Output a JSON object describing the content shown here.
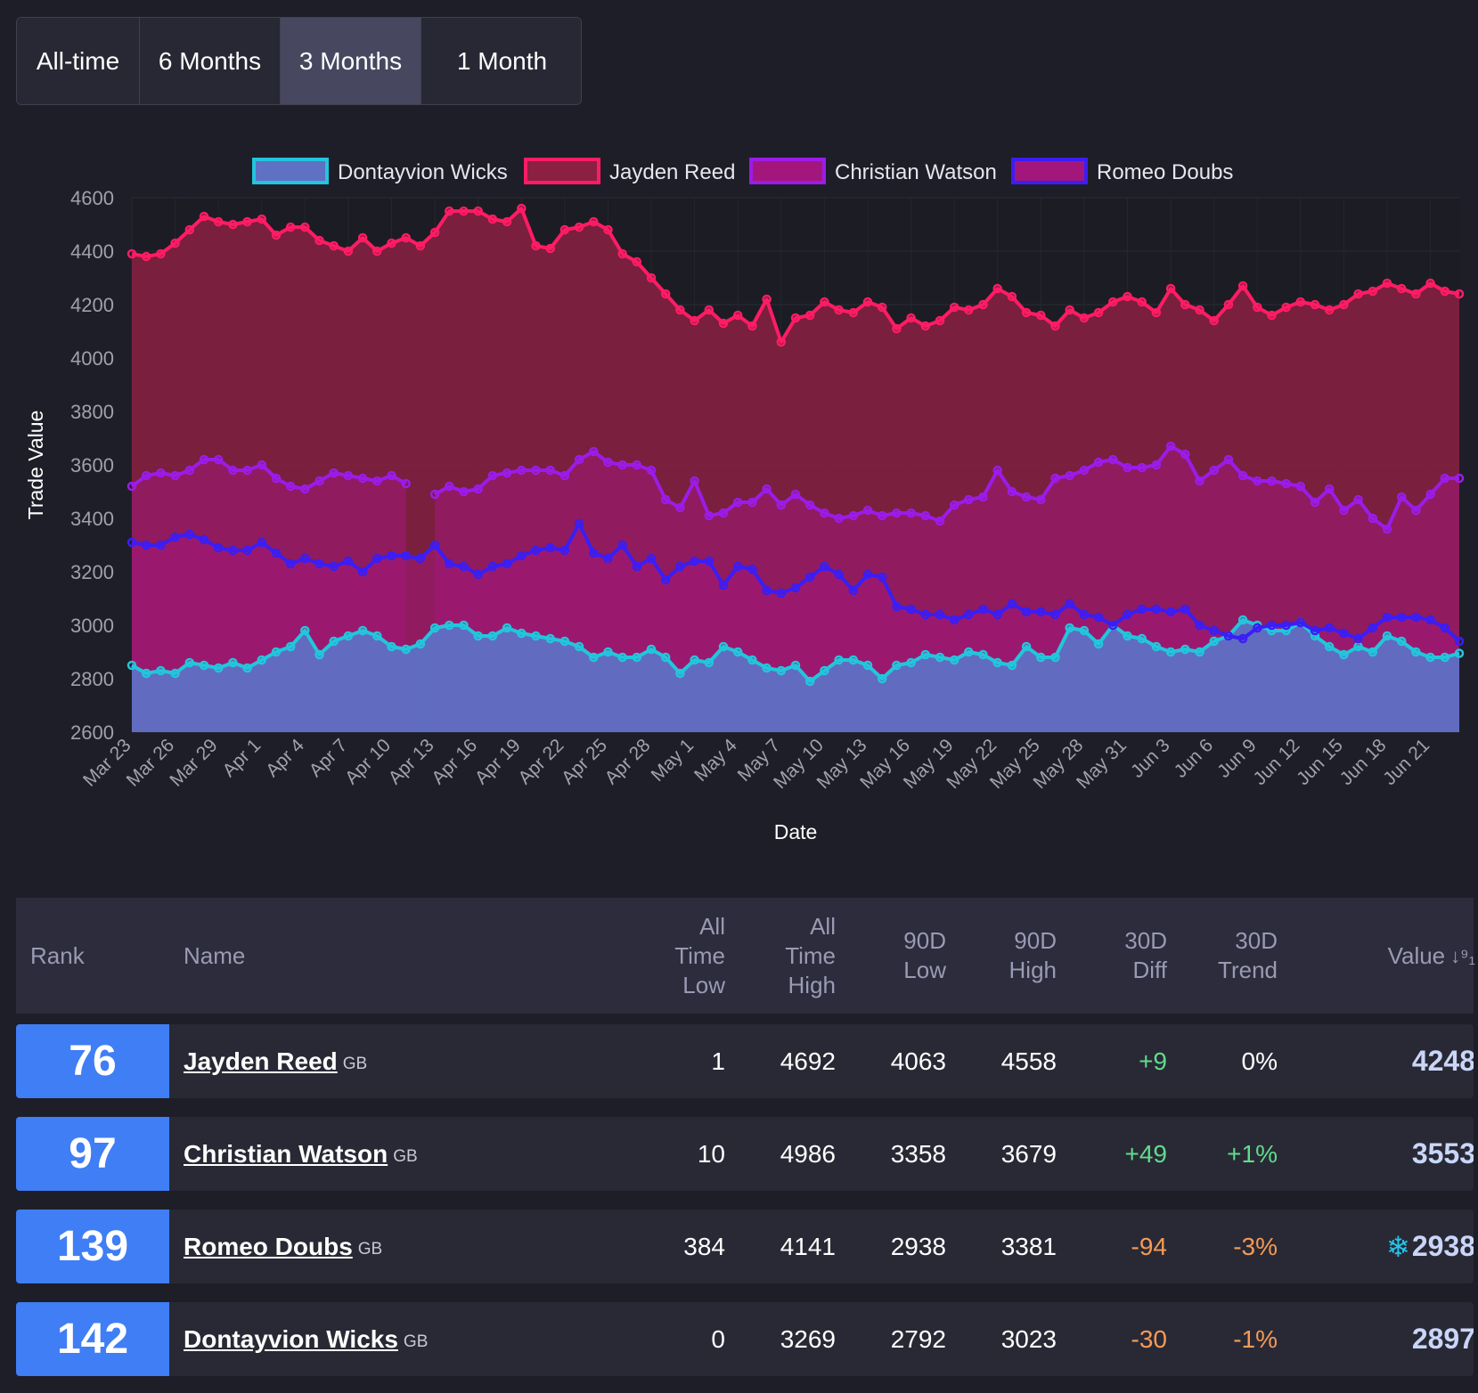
{
  "range_buttons": [
    {
      "label": "All-time",
      "active": false
    },
    {
      "label": "6 Months",
      "active": false
    },
    {
      "label": "3 Months",
      "active": true
    },
    {
      "label": "1 Month",
      "active": false
    }
  ],
  "chart_data": {
    "type": "area",
    "xlabel": "Date",
    "ylabel": "Trade Value",
    "ylim": [
      2600,
      4600
    ],
    "yticks": [
      2600,
      2800,
      3000,
      3200,
      3400,
      3600,
      3800,
      4000,
      4200,
      4400,
      4600
    ],
    "x_start": "Mar 23",
    "x_end": "Jun 21",
    "xticks": [
      "Mar 23",
      "Mar 26",
      "Mar 29",
      "Apr 1",
      "Apr 4",
      "Apr 7",
      "Apr 10",
      "Apr 13",
      "Apr 16",
      "Apr 19",
      "Apr 22",
      "Apr 25",
      "Apr 28",
      "May 1",
      "May 4",
      "May 7",
      "May 10",
      "May 13",
      "May 16",
      "May 19",
      "May 22",
      "May 25",
      "May 28",
      "May 31",
      "Jun 3",
      "Jun 6",
      "Jun 9",
      "Jun 12",
      "Jun 15",
      "Jun 18",
      "Jun 21"
    ],
    "legend_position": "top",
    "grid": true,
    "series": [
      {
        "name": "Dontayvion Wicks",
        "color": "#22c6dc",
        "fill": "#5e71c4",
        "values": [
          2850,
          2820,
          2830,
          2820,
          2860,
          2850,
          2840,
          2860,
          2840,
          2870,
          2900,
          2920,
          2980,
          2890,
          2940,
          2960,
          2980,
          2960,
          2920,
          2910,
          2930,
          2990,
          3000,
          3000,
          2960,
          2960,
          2990,
          2970,
          2960,
          2950,
          2940,
          2920,
          2880,
          2900,
          2880,
          2880,
          2910,
          2880,
          2820,
          2870,
          2860,
          2920,
          2900,
          2870,
          2840,
          2830,
          2850,
          2790,
          2830,
          2870,
          2870,
          2850,
          2800,
          2850,
          2860,
          2890,
          2880,
          2870,
          2900,
          2890,
          2860,
          2850,
          2920,
          2880,
          2880,
          2990,
          2980,
          2930,
          3000,
          2960,
          2950,
          2920,
          2900,
          2910,
          2900,
          2940,
          2960,
          3020,
          3000,
          2980,
          2980,
          3010,
          2960,
          2920,
          2890,
          2920,
          2900,
          2960,
          2940,
          2900,
          2880,
          2880,
          2895
        ]
      },
      {
        "name": "Jayden Reed",
        "color": "#ff1c64",
        "fill": "#8b2042",
        "values": [
          4390,
          4380,
          4390,
          4430,
          4480,
          4530,
          4510,
          4500,
          4510,
          4520,
          4460,
          4490,
          4490,
          4440,
          4420,
          4400,
          4450,
          4400,
          4430,
          4450,
          4420,
          4470,
          4550,
          4550,
          4550,
          4520,
          4510,
          4560,
          4420,
          4410,
          4480,
          4490,
          4510,
          4480,
          4390,
          4360,
          4300,
          4240,
          4180,
          4140,
          4180,
          4130,
          4160,
          4120,
          4220,
          4060,
          4150,
          4160,
          4210,
          4180,
          4170,
          4210,
          4190,
          4110,
          4150,
          4120,
          4140,
          4190,
          4180,
          4200,
          4260,
          4230,
          4170,
          4160,
          4120,
          4180,
          4150,
          4170,
          4210,
          4230,
          4210,
          4170,
          4260,
          4200,
          4180,
          4140,
          4200,
          4270,
          4190,
          4160,
          4190,
          4210,
          4200,
          4180,
          4200,
          4240,
          4250,
          4280,
          4260,
          4240,
          4280,
          4250,
          4240
        ]
      },
      {
        "name": "Christian Watson",
        "color": "#9b1ce8",
        "fill": "#a3177c",
        "values": [
          3520,
          3560,
          3570,
          3560,
          3580,
          3620,
          3620,
          3580,
          3580,
          3600,
          3550,
          3520,
          3510,
          3540,
          3570,
          3560,
          3550,
          3540,
          3560,
          3530,
          null,
          3490,
          3520,
          3500,
          3510,
          3560,
          3570,
          3580,
          3580,
          3580,
          3560,
          3620,
          3650,
          3610,
          3600,
          3600,
          3580,
          3470,
          3440,
          3540,
          3410,
          3420,
          3460,
          3460,
          3510,
          3450,
          3490,
          3450,
          3420,
          3400,
          3410,
          3430,
          3410,
          3420,
          3420,
          3410,
          3390,
          3450,
          3470,
          3480,
          3580,
          3500,
          3480,
          3470,
          3550,
          3560,
          3580,
          3610,
          3620,
          3590,
          3590,
          3600,
          3670,
          3640,
          3540,
          3580,
          3620,
          3560,
          3540,
          3540,
          3530,
          3520,
          3460,
          3510,
          3430,
          3470,
          3400,
          3360,
          3480,
          3430,
          3490,
          3550,
          3550
        ]
      },
      {
        "name": "Romeo Doubs",
        "color": "#3a1ef5",
        "fill": "#a3177c",
        "values": [
          3310,
          3300,
          3300,
          3330,
          3340,
          3320,
          3290,
          3280,
          3280,
          3310,
          3270,
          3230,
          3250,
          3230,
          3220,
          3240,
          3200,
          3250,
          3260,
          3260,
          3250,
          3300,
          3230,
          3220,
          3190,
          3220,
          3230,
          3260,
          3280,
          3290,
          3280,
          3380,
          3270,
          3250,
          3300,
          3220,
          3250,
          3170,
          3220,
          3240,
          3240,
          3150,
          3220,
          3210,
          3130,
          3120,
          3140,
          3180,
          3220,
          3190,
          3130,
          3190,
          3180,
          3070,
          3060,
          3040,
          3040,
          3020,
          3040,
          3060,
          3040,
          3080,
          3050,
          3050,
          3040,
          3080,
          3040,
          3030,
          3000,
          3040,
          3060,
          3060,
          3050,
          3060,
          3000,
          2980,
          2960,
          2950,
          2990,
          3000,
          3000,
          3010,
          2980,
          2990,
          2970,
          2950,
          2990,
          3030,
          3030,
          3030,
          3020,
          2990,
          2940
        ]
      }
    ]
  },
  "table": {
    "headers": {
      "rank": "Rank",
      "name": "Name",
      "atl": [
        "All",
        "Time",
        "Low"
      ],
      "ath": [
        "All",
        "Time",
        "High"
      ],
      "low90": [
        "90D",
        "Low"
      ],
      "high90": [
        "90D",
        "High"
      ],
      "diff30": [
        "30D",
        "Diff"
      ],
      "trend30": [
        "30D",
        "Trend"
      ],
      "value": "Value",
      "sort_icon": "↓⁹₁"
    },
    "rows": [
      {
        "rank": "76",
        "name": "Jayden Reed",
        "team": "GB",
        "atl": "1",
        "ath": "4692",
        "low90": "4063",
        "high90": "4558",
        "diff30": "+9",
        "trend30": "0%",
        "value": "4248",
        "diff_dir": "pos",
        "trend_dir": "flat",
        "frozen": false
      },
      {
        "rank": "97",
        "name": "Christian Watson",
        "team": "GB",
        "atl": "10",
        "ath": "4986",
        "low90": "3358",
        "high90": "3679",
        "diff30": "+49",
        "trend30": "+1%",
        "value": "3553",
        "diff_dir": "pos",
        "trend_dir": "pos",
        "frozen": false
      },
      {
        "rank": "139",
        "name": "Romeo Doubs",
        "team": "GB",
        "atl": "384",
        "ath": "4141",
        "low90": "2938",
        "high90": "3381",
        "diff30": "-94",
        "trend30": "-3%",
        "value": "2938",
        "diff_dir": "neg",
        "trend_dir": "neg",
        "frozen": true,
        "frozen_icon": "snowflake-icon"
      },
      {
        "rank": "142",
        "name": "Dontayvion Wicks",
        "team": "GB",
        "atl": "0",
        "ath": "3269",
        "low90": "2792",
        "high90": "3023",
        "diff30": "-30",
        "trend30": "-1%",
        "value": "2897",
        "diff_dir": "neg",
        "trend_dir": "neg",
        "frozen": false
      }
    ]
  }
}
